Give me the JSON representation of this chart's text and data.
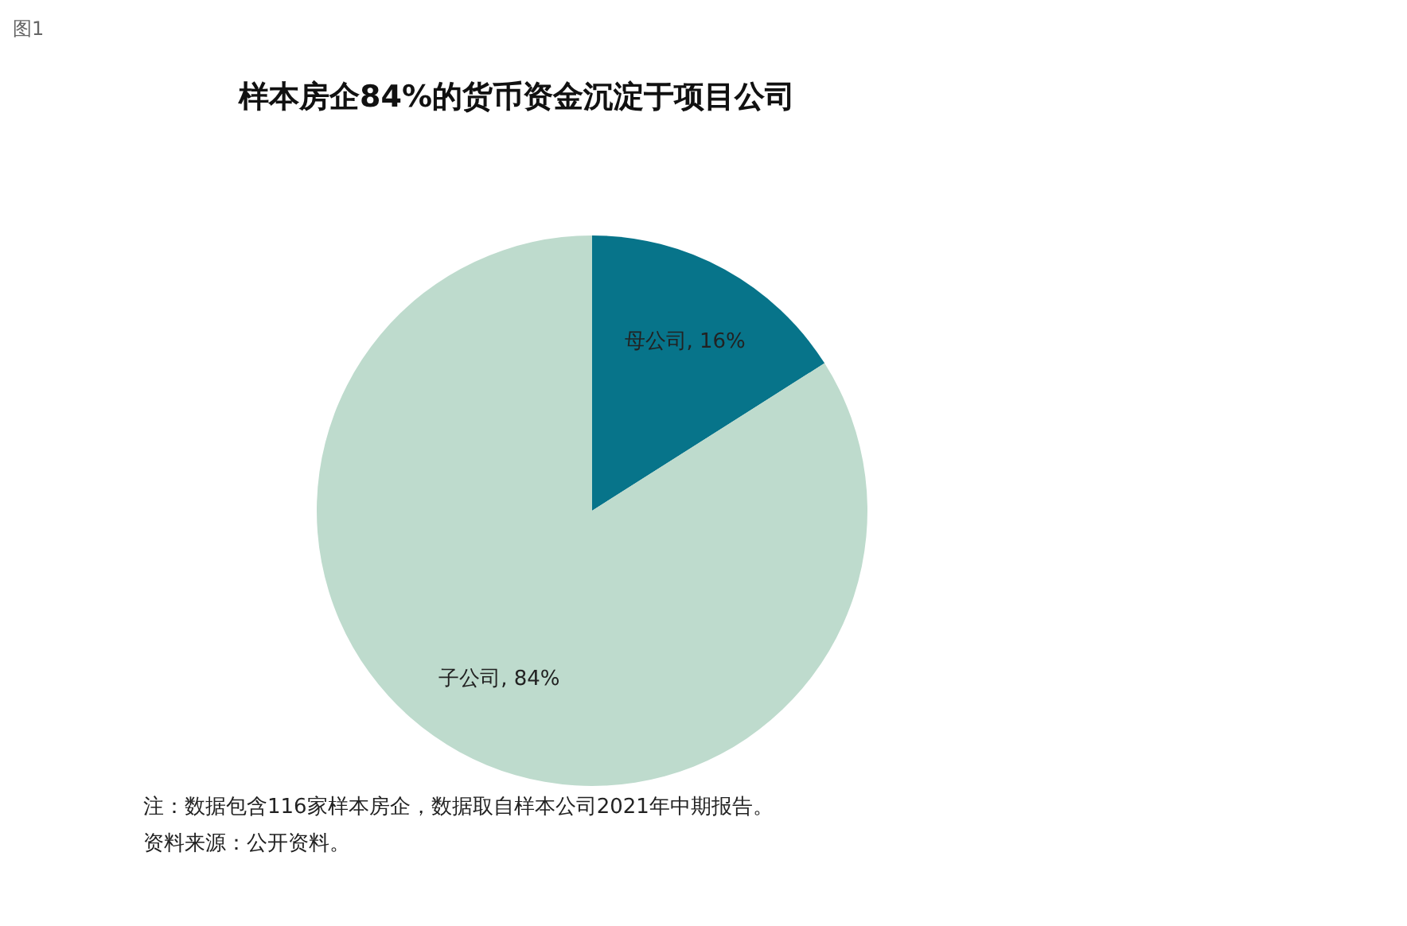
{
  "chart_data": {
    "type": "pie",
    "title": "样本房企84%的货币资金沉淀于项目公司",
    "categories": [
      "母公司",
      "子公司"
    ],
    "values": [
      16,
      84
    ],
    "colors": [
      "#07748a",
      "#bedbcd"
    ],
    "value_labels": [
      "16%",
      "84%"
    ],
    "legend": false,
    "annotations": [
      "图1",
      "注：数据包含116家样本房企，数据取自样本公司2021年中期报告。",
      "资料来源：公开资料。"
    ]
  }
}
